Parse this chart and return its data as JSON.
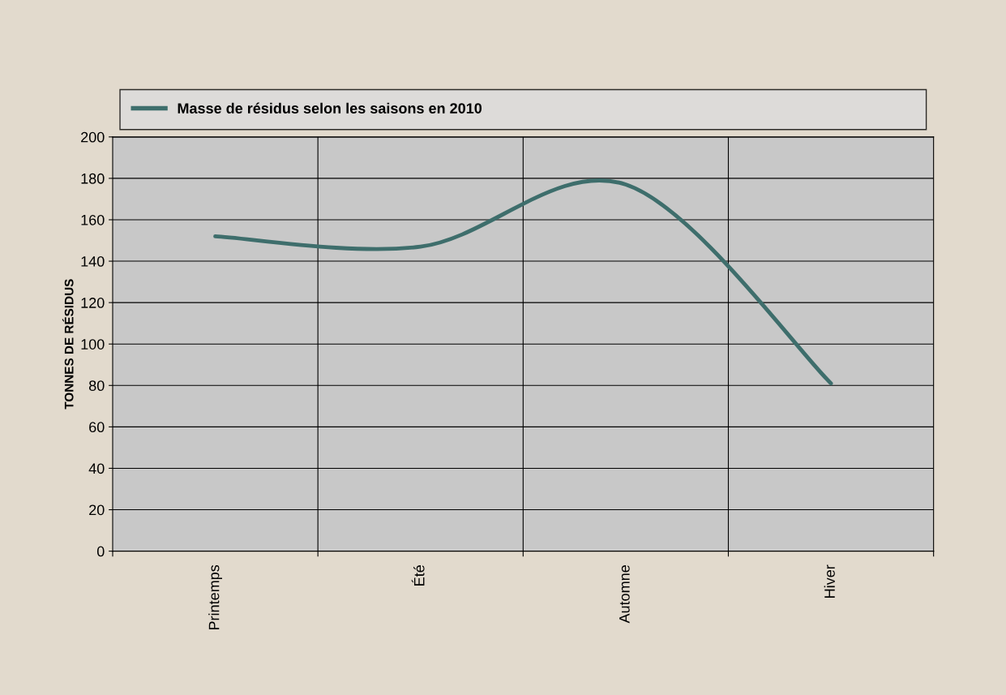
{
  "chart_data": {
    "type": "line",
    "ylabel": "TONNES DE RÉSIDUS",
    "categories": [
      "Printemps",
      "Été",
      "Automne",
      "Hiver"
    ],
    "series": [
      {
        "name": "Masse de résidus selon les saisons en 2010",
        "color": "#3e6e6c",
        "values": [
          152,
          147,
          177,
          81
        ]
      }
    ],
    "ylim": [
      0,
      200
    ],
    "yticks": [
      0,
      20,
      40,
      60,
      80,
      100,
      120,
      140,
      160,
      180,
      200
    ],
    "grid": true,
    "legend": "top",
    "marker": "none",
    "line_style": "solid"
  }
}
